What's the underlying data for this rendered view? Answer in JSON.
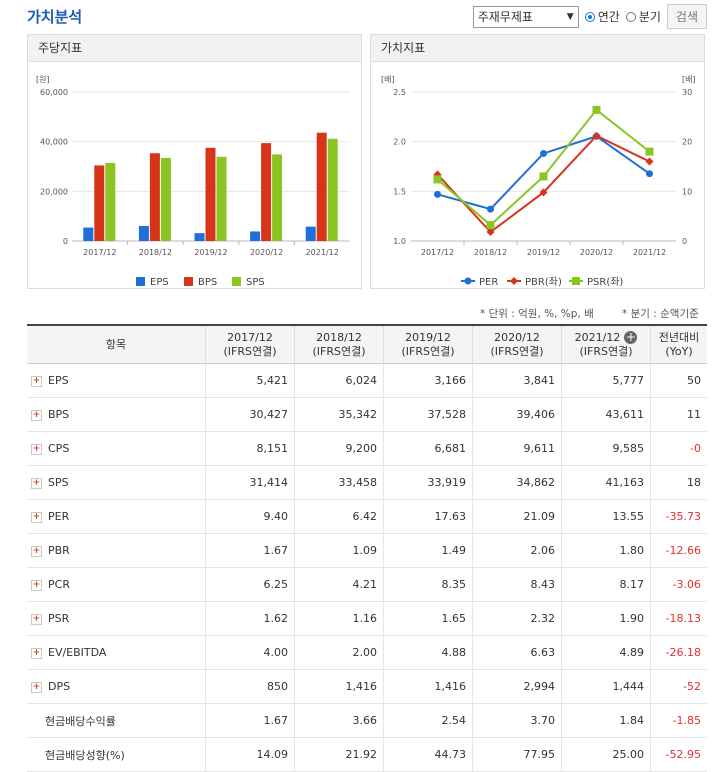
{
  "page_title": "가치분석",
  "controls": {
    "select_value": "주재무제표",
    "radio_annual": "연간",
    "radio_quarter": "분기",
    "search_button": "검색"
  },
  "panel_left": {
    "title": "주당지표",
    "unit": "[원]",
    "legend": [
      "EPS",
      "BPS",
      "SPS"
    ]
  },
  "panel_right": {
    "title": "가치지표",
    "unit_left": "[배]",
    "unit_right": "[배]",
    "legend": [
      "PER",
      "PBR(좌)",
      "PSR(좌)"
    ]
  },
  "chart_data": [
    {
      "type": "bar",
      "title": "주당지표",
      "ylabel": "[원]",
      "categories": [
        "2017/12",
        "2018/12",
        "2019/12",
        "2020/12",
        "2021/12"
      ],
      "ylim": [
        0,
        60000
      ],
      "yticks": [
        "0",
        "20,000",
        "40,000",
        "60,000"
      ],
      "legend_position": "bottom",
      "series": [
        {
          "name": "EPS",
          "color": "#1f6fd8",
          "values": [
            5421,
            6024,
            3166,
            3841,
            5777
          ]
        },
        {
          "name": "BPS",
          "color": "#d7341a",
          "values": [
            30427,
            35342,
            37528,
            39406,
            43611
          ]
        },
        {
          "name": "SPS",
          "color": "#8bc524",
          "values": [
            31414,
            33458,
            33919,
            34862,
            41163
          ]
        }
      ]
    },
    {
      "type": "line",
      "title": "가치지표",
      "categories": [
        "2017/12",
        "2018/12",
        "2019/12",
        "2020/12",
        "2021/12"
      ],
      "ylim_left": [
        1.0,
        2.5
      ],
      "yticks_left": [
        "1.0",
        "1.5",
        "2.0",
        "2.5"
      ],
      "ylim_right": [
        0,
        30
      ],
      "yticks_right": [
        "0",
        "10",
        "20",
        "30"
      ],
      "legend_position": "bottom",
      "series": [
        {
          "name": "PER",
          "axis": "right",
          "color": "#1f6fd8",
          "marker": "circle",
          "values": [
            9.4,
            6.42,
            17.63,
            21.09,
            13.55
          ]
        },
        {
          "name": "PBR(좌)",
          "axis": "left",
          "color": "#d7341a",
          "marker": "diamond",
          "values": [
            1.67,
            1.09,
            1.49,
            2.06,
            1.8
          ]
        },
        {
          "name": "PSR(좌)",
          "axis": "left",
          "color": "#8bc524",
          "marker": "square",
          "values": [
            1.62,
            1.16,
            1.65,
            2.32,
            1.9
          ]
        }
      ]
    }
  ],
  "notes": {
    "unit_note": "* 단위 : 억원, %, %p, 배",
    "quarter_note": "* 분기 : 순액기준"
  },
  "table": {
    "header_item": "항목",
    "columns": [
      {
        "year": "2017/12",
        "sub": "(IFRS연결)"
      },
      {
        "year": "2018/12",
        "sub": "(IFRS연결)"
      },
      {
        "year": "2019/12",
        "sub": "(IFRS연결)"
      },
      {
        "year": "2020/12",
        "sub": "(IFRS연결)"
      },
      {
        "year": "2021/12",
        "sub": "(IFRS연결)"
      }
    ],
    "yoy_header": "전년대비",
    "yoy_sub": "(YoY)",
    "rows": [
      {
        "label": "EPS",
        "expand": true,
        "values": [
          "5,421",
          "6,024",
          "3,166",
          "3,841",
          "5,777"
        ],
        "yoy": "50"
      },
      {
        "label": "BPS",
        "expand": true,
        "values": [
          "30,427",
          "35,342",
          "37,528",
          "39,406",
          "43,611"
        ],
        "yoy": "11"
      },
      {
        "label": "CPS",
        "expand": true,
        "values": [
          "8,151",
          "9,200",
          "6,681",
          "9,611",
          "9,585"
        ],
        "yoy": "-0"
      },
      {
        "label": "SPS",
        "expand": true,
        "values": [
          "31,414",
          "33,458",
          "33,919",
          "34,862",
          "41,163"
        ],
        "yoy": "18"
      },
      {
        "label": "PER",
        "expand": true,
        "values": [
          "9.40",
          "6.42",
          "17.63",
          "21.09",
          "13.55"
        ],
        "yoy": "-35.73"
      },
      {
        "label": "PBR",
        "expand": true,
        "values": [
          "1.67",
          "1.09",
          "1.49",
          "2.06",
          "1.80"
        ],
        "yoy": "-12.66"
      },
      {
        "label": "PCR",
        "expand": true,
        "values": [
          "6.25",
          "4.21",
          "8.35",
          "8.43",
          "8.17"
        ],
        "yoy": "-3.06"
      },
      {
        "label": "PSR",
        "expand": true,
        "values": [
          "1.62",
          "1.16",
          "1.65",
          "2.32",
          "1.90"
        ],
        "yoy": "-18.13"
      },
      {
        "label": "EV/EBITDA",
        "expand": true,
        "values": [
          "4.00",
          "2.00",
          "4.88",
          "6.63",
          "4.89"
        ],
        "yoy": "-26.18"
      },
      {
        "label": "DPS",
        "expand": true,
        "values": [
          "850",
          "1,416",
          "1,416",
          "2,994",
          "1,444"
        ],
        "yoy": "-52"
      },
      {
        "label": "현금배당수익률",
        "expand": false,
        "values": [
          "1.67",
          "3.66",
          "2.54",
          "3.70",
          "1.84"
        ],
        "yoy": "-1.85"
      },
      {
        "label": "현금배당성향(%)",
        "expand": false,
        "values": [
          "14.09",
          "21.92",
          "44.73",
          "77.95",
          "25.00"
        ],
        "yoy": "-52.95"
      }
    ]
  }
}
